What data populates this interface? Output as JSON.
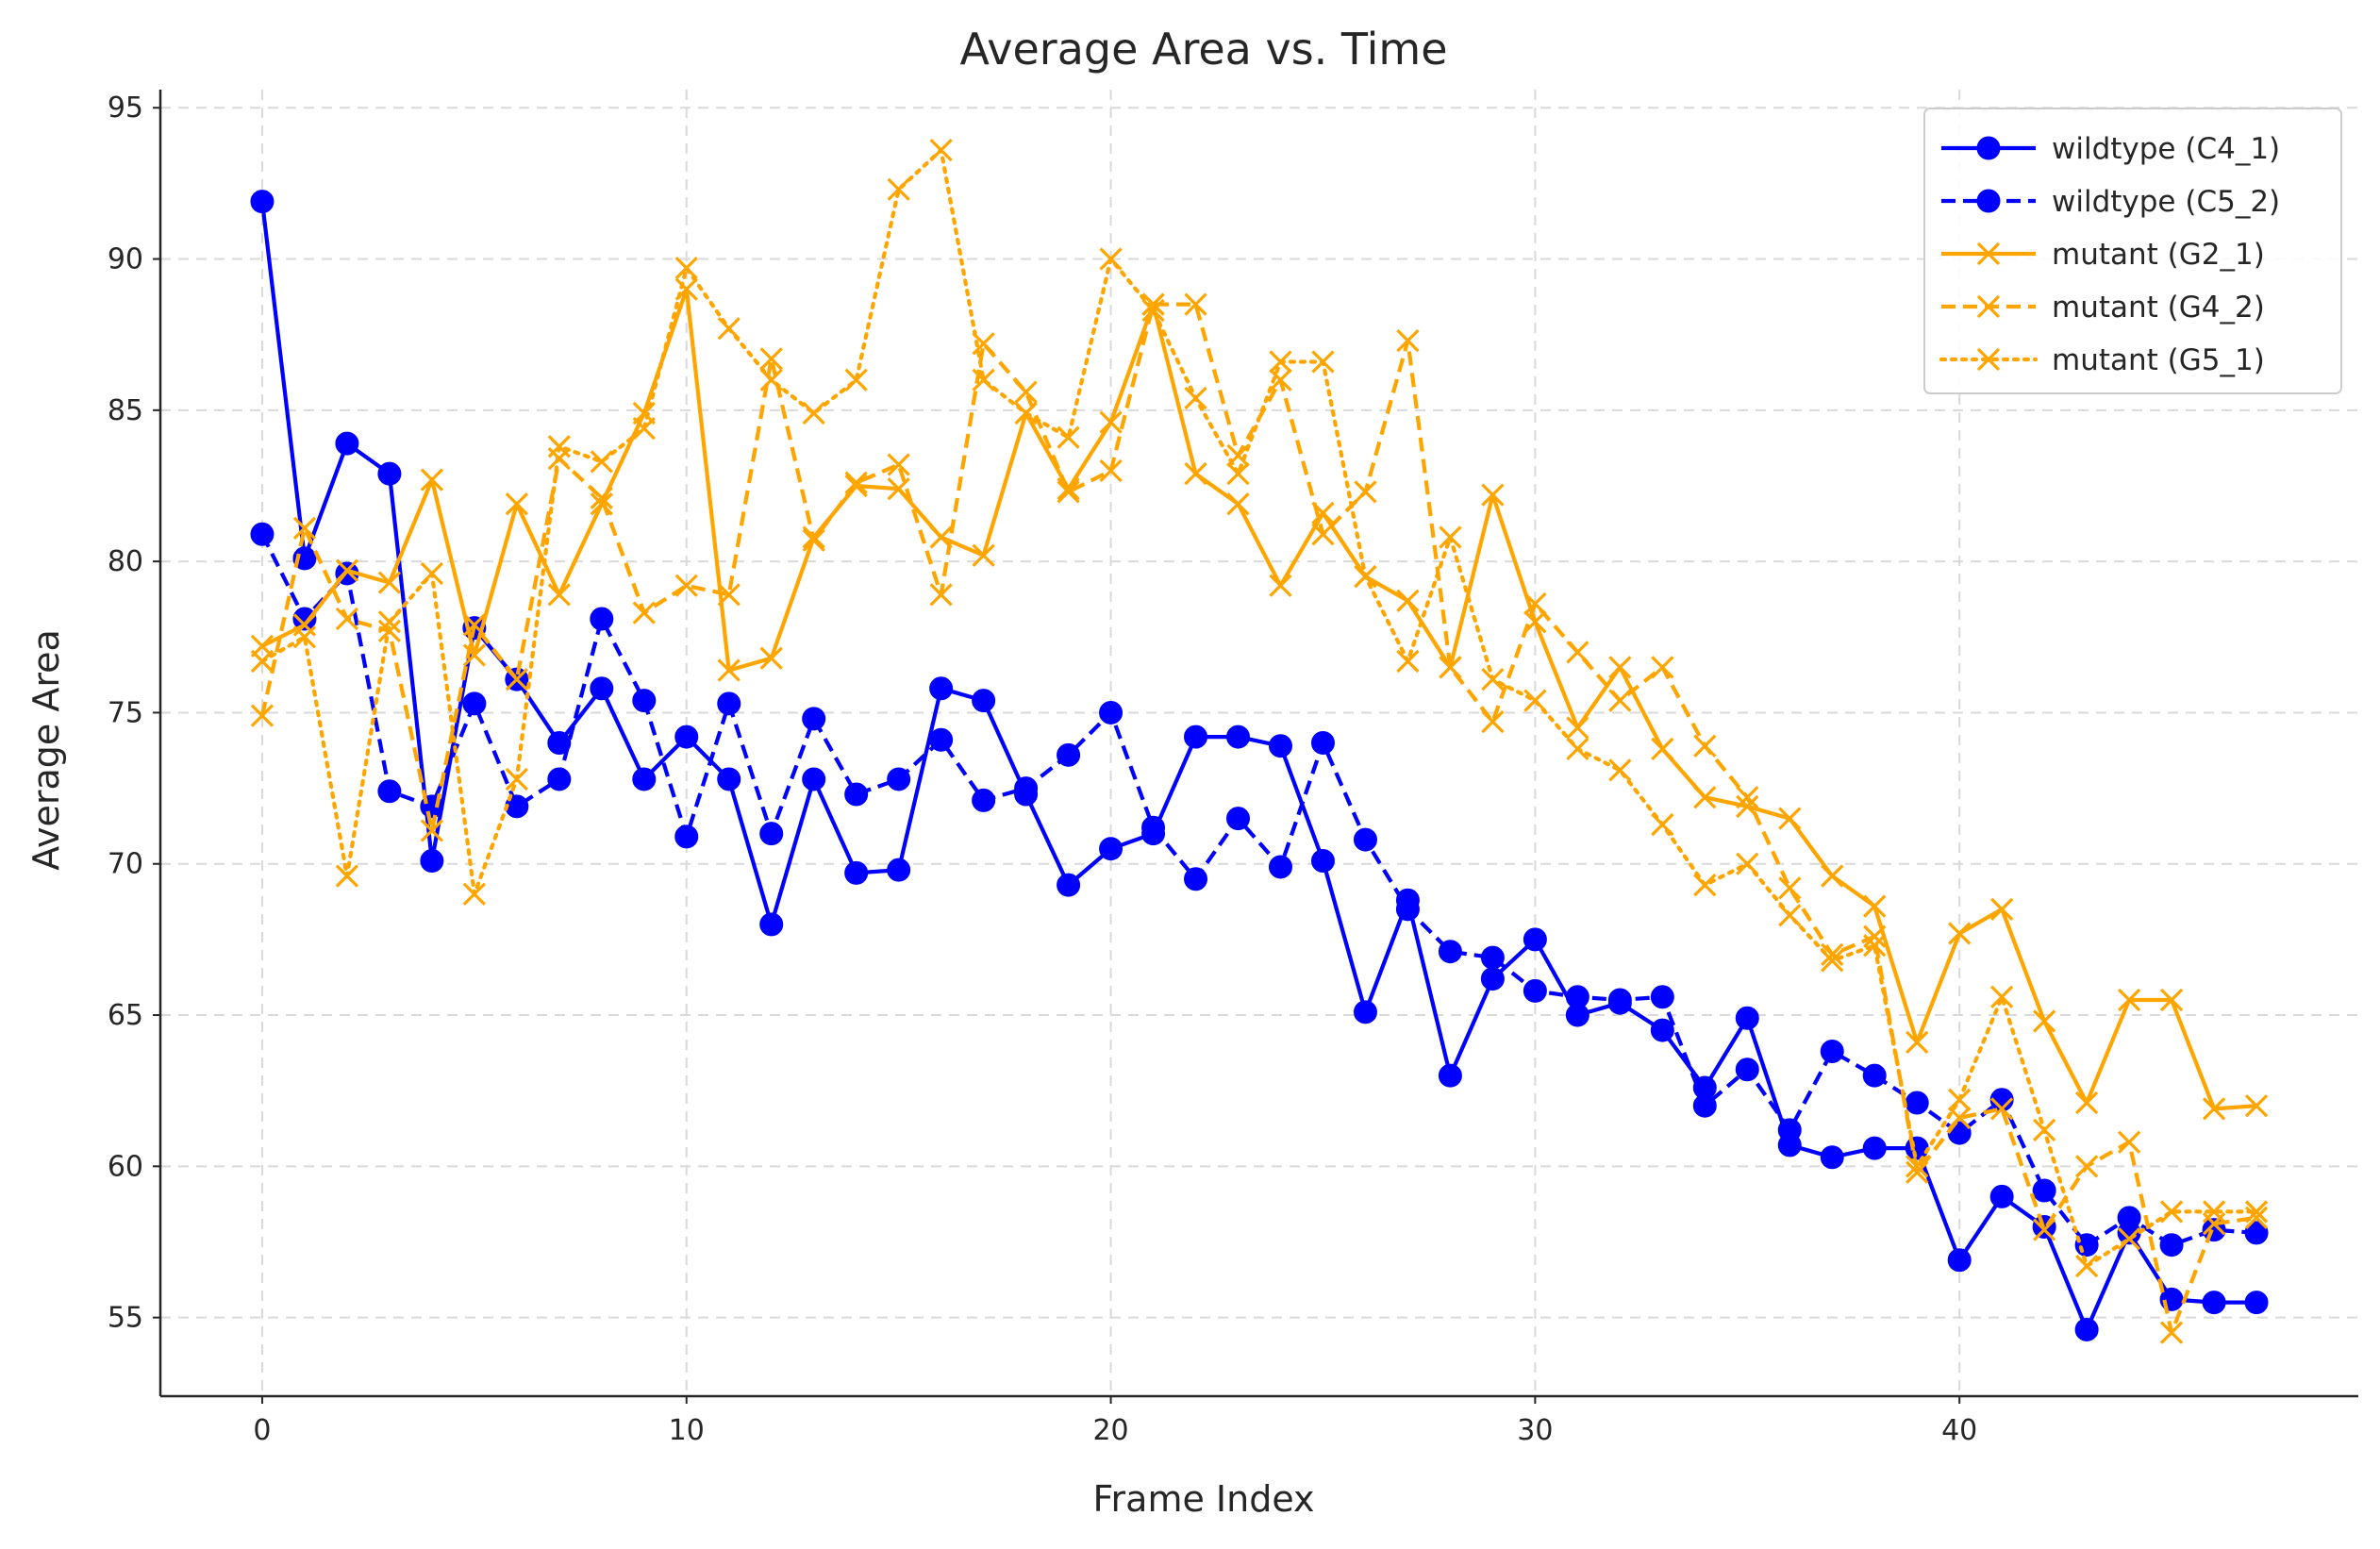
{
  "chart_data": {
    "type": "line",
    "title": "Average Area vs. Time",
    "xlabel": "Frame Index",
    "ylabel": "Average Area",
    "xlim": [
      -2.4,
      49.4
    ],
    "ylim": [
      52.4,
      95.6
    ],
    "xticks": [
      0,
      10,
      20,
      30,
      40
    ],
    "yticks": [
      55,
      60,
      65,
      70,
      75,
      80,
      85,
      90,
      95
    ],
    "grid": true,
    "legend_position": "top-right",
    "x": [
      0,
      1,
      2,
      3,
      4,
      5,
      6,
      7,
      8,
      9,
      10,
      11,
      12,
      13,
      14,
      15,
      16,
      17,
      18,
      19,
      20,
      21,
      22,
      23,
      24,
      25,
      26,
      27,
      28,
      29,
      30,
      31,
      32,
      33,
      34,
      35,
      36,
      37,
      38,
      39,
      40,
      41,
      42,
      43,
      44,
      45,
      46,
      47
    ],
    "series": [
      {
        "name": "wildtype (C4_1)",
        "color": "#0000ff",
        "linestyle": "solid",
        "marker": "circle",
        "values": [
          91.9,
          80.1,
          83.9,
          82.9,
          70.1,
          77.8,
          76.1,
          74.0,
          75.8,
          72.8,
          74.2,
          72.8,
          68.0,
          72.8,
          69.7,
          69.8,
          75.8,
          75.4,
          72.3,
          69.3,
          70.5,
          71.0,
          74.2,
          74.2,
          73.9,
          70.1,
          65.1,
          68.8,
          63.0,
          66.2,
          67.5,
          65.0,
          65.4,
          64.5,
          62.6,
          64.9,
          60.7,
          60.3,
          60.6,
          60.6,
          56.9,
          59.0,
          58.0,
          54.6,
          57.8,
          55.6,
          55.5,
          55.5
        ]
      },
      {
        "name": "wildtype (C5_2)",
        "color": "#0000ff",
        "linestyle": "dashed",
        "marker": "circle",
        "values": [
          80.9,
          78.1,
          79.6,
          72.4,
          71.9,
          75.3,
          71.9,
          72.8,
          78.1,
          75.4,
          70.9,
          75.3,
          71.0,
          74.8,
          72.3,
          72.8,
          74.1,
          72.1,
          72.5,
          73.6,
          75.0,
          71.2,
          69.5,
          71.5,
          69.9,
          74.0,
          70.8,
          68.5,
          67.1,
          66.9,
          65.8,
          65.6,
          65.5,
          65.6,
          62.0,
          63.2,
          61.2,
          63.8,
          63.0,
          62.1,
          61.1,
          62.2,
          59.2,
          57.4,
          58.3,
          57.4,
          57.9,
          57.8
        ]
      },
      {
        "name": "mutant (G2_1)",
        "color": "#ffa500",
        "linestyle": "solid",
        "marker": "x",
        "values": [
          77.2,
          77.9,
          79.7,
          79.3,
          82.7,
          76.9,
          81.9,
          78.9,
          81.9,
          84.9,
          89.0,
          76.4,
          76.8,
          80.8,
          82.5,
          82.4,
          80.8,
          80.2,
          84.9,
          82.4,
          84.6,
          88.5,
          82.9,
          81.9,
          79.2,
          81.6,
          79.5,
          78.7,
          76.5,
          82.2,
          78.0,
          74.5,
          76.5,
          73.8,
          72.2,
          71.9,
          71.5,
          69.6,
          68.6,
          64.1,
          67.7,
          68.5,
          64.8,
          62.1,
          65.5,
          65.5,
          61.9,
          62.0
        ]
      },
      {
        "name": "mutant (G4_2)",
        "color": "#ffa500",
        "linestyle": "dashed",
        "marker": "x",
        "values": [
          74.9,
          81.1,
          78.1,
          77.7,
          71.1,
          77.9,
          76.1,
          83.4,
          82.1,
          78.3,
          79.2,
          78.9,
          86.7,
          80.7,
          82.6,
          83.2,
          78.9,
          87.2,
          85.6,
          82.3,
          83.0,
          88.5,
          88.5,
          83.5,
          86.0,
          80.9,
          82.3,
          87.3,
          76.5,
          74.7,
          78.6,
          77.0,
          75.4,
          76.5,
          73.9,
          72.2,
          69.2,
          67.0,
          67.6,
          59.8,
          61.6,
          61.9,
          57.9,
          60.0,
          60.8,
          54.5,
          58.1,
          58.3
        ]
      },
      {
        "name": "mutant (G5_1)",
        "color": "#ffa500",
        "linestyle": "dotted",
        "marker": "x",
        "values": [
          76.7,
          77.5,
          69.6,
          78.0,
          79.6,
          69.0,
          72.8,
          83.8,
          83.3,
          84.4,
          89.7,
          87.7,
          86.0,
          84.9,
          86.0,
          92.3,
          93.6,
          86.0,
          84.9,
          84.1,
          90.0,
          88.3,
          85.4,
          82.9,
          86.6,
          86.6,
          79.5,
          76.7,
          80.8,
          76.1,
          75.4,
          73.8,
          73.1,
          71.3,
          69.3,
          70.0,
          68.3,
          66.8,
          67.3,
          60.0,
          62.2,
          65.6,
          61.2,
          56.7,
          57.6,
          58.5,
          58.5,
          58.5
        ]
      }
    ]
  }
}
